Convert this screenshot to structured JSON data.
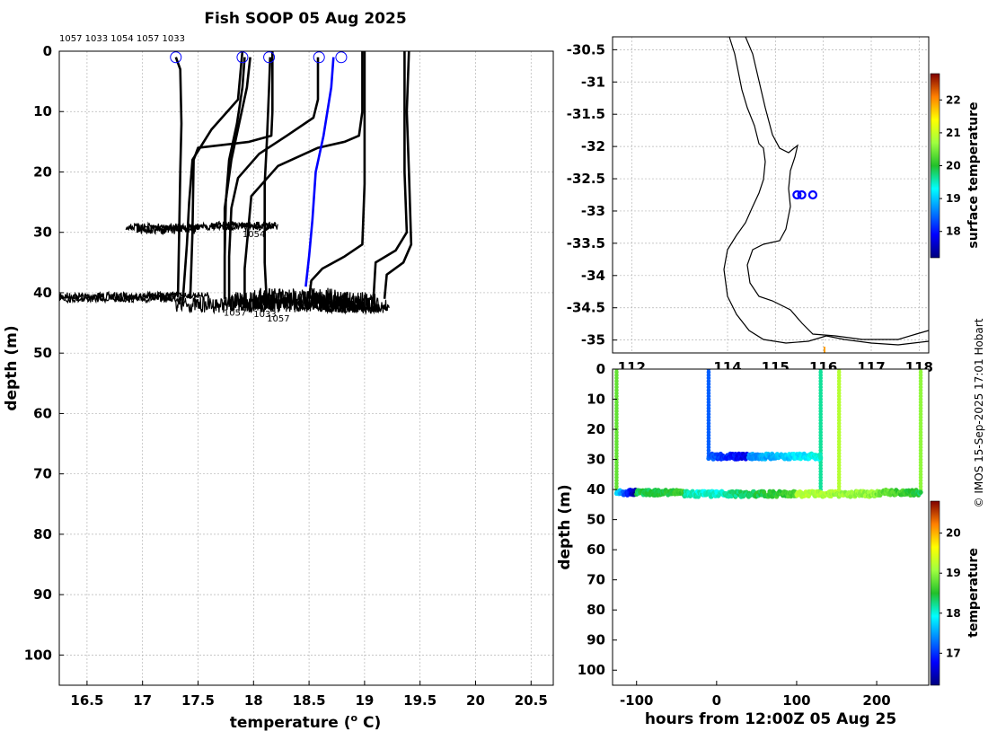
{
  "title": "Fish SOOP 05 Aug 2025",
  "credit": "© IMOS 15-Sep-2025 17:01 Hobart",
  "chart_data": [
    {
      "type": "line",
      "xlabel": "temperature (",
      "xlabel_unit": "o",
      "xlabel_tail": " C)",
      "ylabel": "depth (m)",
      "xlim": [
        16.25,
        20.7
      ],
      "ylim": [
        0,
        105
      ],
      "y_reversed": true,
      "grid": true,
      "xticks": [
        16.5,
        17,
        17.5,
        18,
        18.5,
        19,
        19.5,
        20,
        20.5
      ],
      "xtick_labels": [
        "16.5",
        "17",
        "17.5",
        "18",
        "18.5",
        "19",
        "19.5",
        "20",
        "20.5"
      ],
      "yticks": [
        0,
        10,
        20,
        30,
        40,
        50,
        60,
        70,
        80,
        90,
        100
      ],
      "ytick_labels": [
        "0",
        "10",
        "20",
        "30",
        "40",
        "50",
        "60",
        "70",
        "80",
        "90",
        "100"
      ],
      "top_labels": [
        "1057",
        "1033",
        "1054",
        "1057",
        "1033"
      ],
      "bottom_labels": [
        "1054",
        "1057",
        "1033",
        "1057"
      ],
      "start_markers": [
        [
          17.3,
          1
        ],
        [
          17.9,
          1
        ],
        [
          18.14,
          1
        ],
        [
          18.59,
          1
        ],
        [
          18.79,
          1
        ]
      ],
      "series": [
        {
          "color": "#000000",
          "points": [
            [
              17.3,
              1
            ],
            [
              17.34,
              3
            ],
            [
              17.35,
              12
            ],
            [
              17.34,
              20
            ],
            [
              17.33,
              30
            ],
            [
              17.32,
              40
            ]
          ]
        },
        {
          "color": "#000000",
          "points": [
            [
              17.92,
              1
            ],
            [
              17.9,
              6
            ],
            [
              17.85,
              12
            ],
            [
              17.78,
              18
            ],
            [
              17.75,
              25
            ],
            [
              17.74,
              34
            ],
            [
              17.74,
              41
            ]
          ]
        },
        {
          "color": "#000000",
          "points": [
            [
              17.97,
              1
            ],
            [
              17.94,
              6
            ],
            [
              17.87,
              12
            ],
            [
              17.8,
              18
            ],
            [
              17.74,
              26
            ],
            [
              17.74,
              41
            ]
          ]
        },
        {
          "color": "#000000",
          "points": [
            [
              18.15,
              1
            ],
            [
              18.14,
              6
            ],
            [
              18.12,
              15
            ],
            [
              18.1,
              22
            ],
            [
              18.1,
              35
            ],
            [
              18.12,
              42
            ]
          ]
        },
        {
          "color": "#000000",
          "points": [
            [
              17.9,
              0
            ],
            [
              17.86,
              8
            ],
            [
              17.62,
              13
            ],
            [
              17.45,
              18
            ],
            [
              17.42,
              25
            ],
            [
              17.4,
              32
            ],
            [
              17.36,
              42
            ]
          ]
        },
        {
          "color": "#000000",
          "points": [
            [
              18.17,
              0
            ],
            [
              18.17,
              10
            ],
            [
              18.16,
              14
            ],
            [
              17.96,
              15
            ],
            [
              17.5,
              16
            ],
            [
              17.46,
              18
            ],
            [
              17.45,
              30
            ],
            [
              17.43,
              41
            ]
          ]
        },
        {
          "color": "#000000",
          "points": [
            [
              18.58,
              1
            ],
            [
              18.58,
              8
            ],
            [
              18.54,
              11
            ],
            [
              18.3,
              14
            ],
            [
              18.05,
              17
            ],
            [
              17.86,
              21
            ],
            [
              17.8,
              26
            ],
            [
              17.78,
              34
            ],
            [
              17.78,
              42
            ]
          ]
        },
        {
          "color": "#000000",
          "points": [
            [
              18.98,
              0
            ],
            [
              18.98,
              10
            ],
            [
              18.95,
              14
            ],
            [
              18.82,
              15
            ],
            [
              18.58,
              16
            ],
            [
              18.22,
              19
            ],
            [
              17.98,
              24
            ],
            [
              17.95,
              30
            ],
            [
              17.92,
              36
            ],
            [
              17.92,
              42
            ]
          ]
        },
        {
          "color": "#000000",
          "points": [
            [
              19.0,
              0
            ],
            [
              19.0,
              10
            ],
            [
              19.0,
              22
            ],
            [
              18.98,
              32
            ],
            [
              18.82,
              34
            ],
            [
              18.62,
              36
            ],
            [
              18.52,
              38
            ],
            [
              18.5,
              41
            ]
          ]
        },
        {
          "color": "#000000",
          "points": [
            [
              19.4,
              0
            ],
            [
              19.38,
              10
            ],
            [
              19.4,
              20
            ],
            [
              19.42,
              32
            ],
            [
              19.35,
              35
            ],
            [
              19.2,
              37
            ],
            [
              19.18,
              41
            ]
          ]
        },
        {
          "color": "#000000",
          "points": [
            [
              19.36,
              0
            ],
            [
              19.36,
              10
            ],
            [
              19.36,
              20
            ],
            [
              19.38,
              30
            ],
            [
              19.28,
              33
            ],
            [
              19.1,
              35
            ],
            [
              19.08,
              41
            ]
          ]
        },
        {
          "color": "#0000ff",
          "points": [
            [
              18.72,
              1
            ],
            [
              18.7,
              6
            ],
            [
              18.63,
              14
            ],
            [
              18.56,
              20
            ],
            [
              18.53,
              28
            ],
            [
              18.5,
              34
            ],
            [
              18.47,
              39
            ]
          ]
        }
      ]
    },
    {
      "type": "scatter",
      "ylim": [
        -35.2,
        -30.3
      ],
      "xlim": [
        111.6,
        118.2
      ],
      "yticks": [
        -30.5,
        -31,
        -31.5,
        -32,
        -32.5,
        -33,
        -33.5,
        -34,
        -34.5,
        -35
      ],
      "ytick_labels": [
        "-30.5",
        "-31",
        "-31.5",
        "-32",
        "-32.5",
        "-33",
        "-33.5",
        "-34",
        "-34.5",
        "-35"
      ],
      "xticks": [
        112,
        114,
        115,
        116,
        117,
        118
      ],
      "xtick_labels": [
        "112",
        "114",
        "115",
        "116",
        "117",
        "118"
      ],
      "grid": true,
      "points": [
        [
          115.45,
          -32.75
        ],
        [
          115.55,
          -32.75
        ],
        [
          115.78,
          -32.75
        ]
      ],
      "marker_color": "#0000ff",
      "colorbar": {
        "label": "surface temperature",
        "range": [
          17.2,
          22.8
        ],
        "ticks": [
          18,
          19,
          20,
          21,
          22
        ],
        "tick_labels": [
          "18",
          "19",
          "20",
          "21",
          "22"
        ]
      }
    },
    {
      "type": "scatter",
      "xlabel": "hours from 12:00Z 05 Aug 25",
      "ylabel": "depth (m)",
      "xlim": [
        -130,
        265
      ],
      "ylim": [
        0,
        105
      ],
      "y_reversed": true,
      "xticks": [
        -100,
        0,
        100,
        200
      ],
      "xtick_labels": [
        "-100",
        "0",
        "100",
        "200"
      ],
      "yticks": [
        0,
        10,
        20,
        30,
        40,
        50,
        60,
        70,
        80,
        90,
        100
      ],
      "ytick_labels": [
        "0",
        "10",
        "20",
        "30",
        "40",
        "50",
        "60",
        "70",
        "80",
        "90",
        "100"
      ],
      "profiles": [
        {
          "hour": -125,
          "temp": 18.8
        },
        {
          "hour": -10,
          "temp": 17.2
        },
        {
          "hour": 130,
          "temp": 18.2
        },
        {
          "hour": 153,
          "temp": 19.2
        },
        {
          "hour": 255,
          "temp": 19.0
        }
      ],
      "segments": [
        {
          "hours": [
            -125,
            -100
          ],
          "depth": 41,
          "temps": [
            17.8,
            16.2
          ]
        },
        {
          "hours": [
            -100,
            -40
          ],
          "depth": 41,
          "temps": [
            18.4,
            18.6
          ]
        },
        {
          "hours": [
            -40,
            10
          ],
          "depth": 41.5,
          "temps": [
            18.1,
            18.0
          ]
        },
        {
          "hours": [
            10,
            100
          ],
          "depth": 41.5,
          "temps": [
            18.2,
            18.7
          ]
        },
        {
          "hours": [
            100,
            200
          ],
          "depth": 41.5,
          "temps": [
            19.2,
            19.0
          ]
        },
        {
          "hours": [
            200,
            255
          ],
          "depth": 41,
          "temps": [
            18.9,
            18.4
          ]
        },
        {
          "hours": [
            -10,
            40
          ],
          "depth": 29,
          "temps": [
            17.2,
            16.6
          ]
        },
        {
          "hours": [
            40,
            130
          ],
          "depth": 29,
          "temps": [
            17.4,
            18.0
          ]
        }
      ],
      "colorbar": {
        "label": "temperature",
        "range": [
          16.2,
          20.8
        ],
        "ticks": [
          17,
          18,
          19,
          20
        ],
        "tick_labels": [
          "17",
          "18",
          "19",
          "20"
        ]
      }
    }
  ]
}
